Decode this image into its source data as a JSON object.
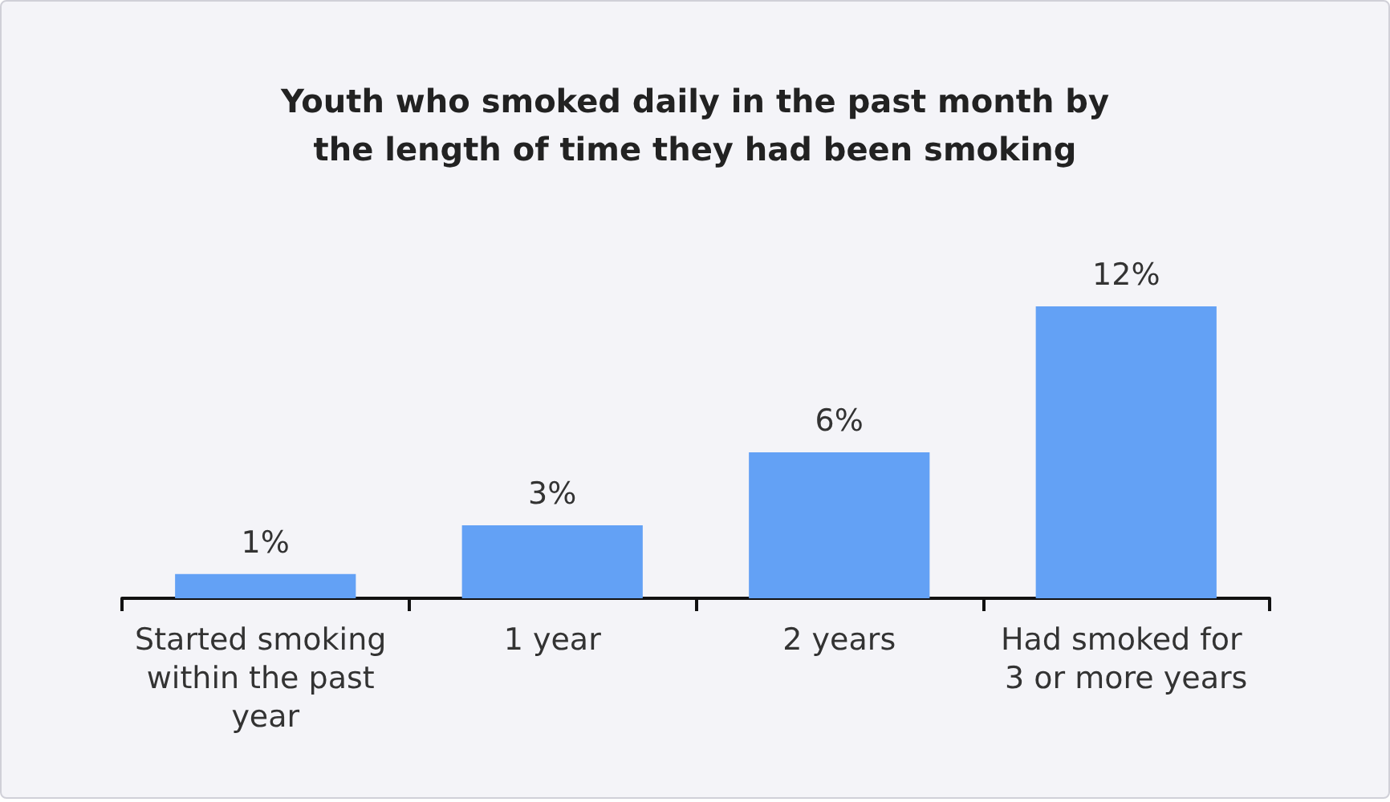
{
  "chart_data": {
    "type": "bar",
    "title": "Youth who smoked daily in the past month by\nthe length of time they had been smoking",
    "categories": [
      "Started smoking within the past year",
      "1 year",
      "2 years",
      "Had smoked for 3 or more years"
    ],
    "values": [
      1,
      3,
      6,
      12
    ],
    "value_labels": [
      "1%",
      "3%",
      "6%",
      "12%"
    ],
    "color": "#63a1f5"
  }
}
